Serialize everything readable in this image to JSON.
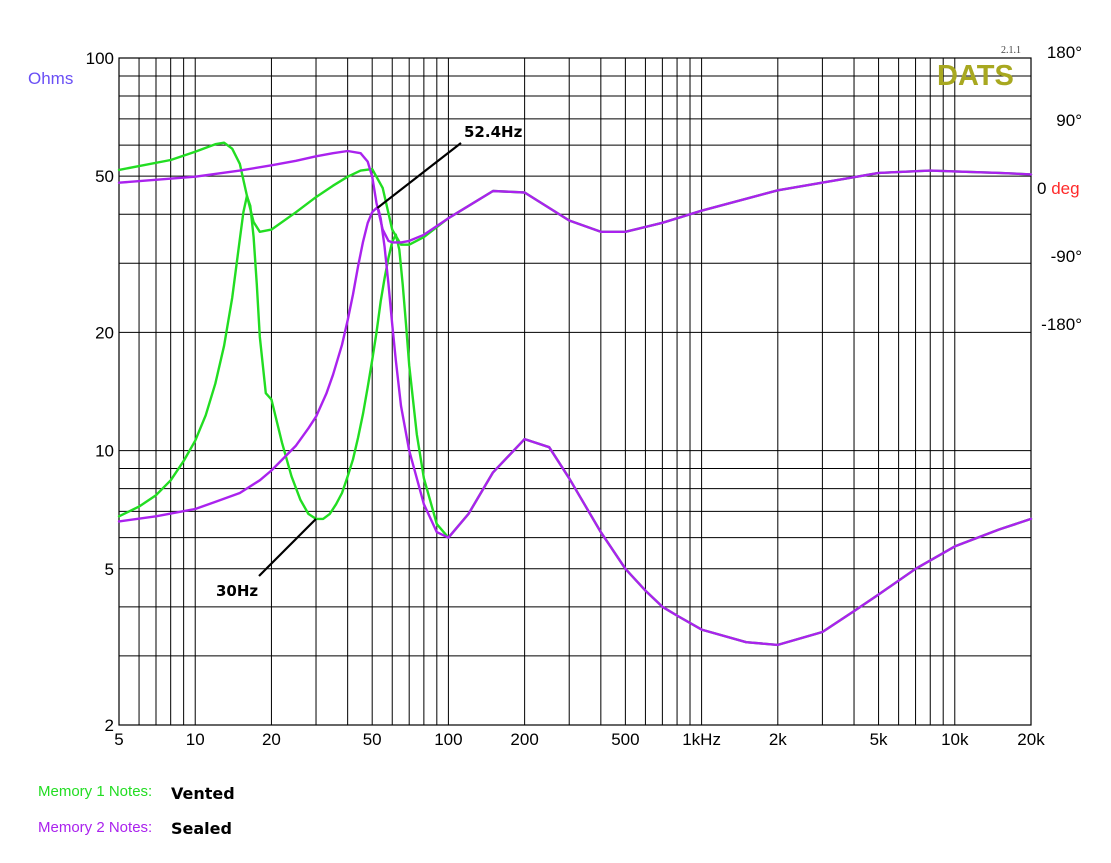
{
  "chart_data": {
    "type": "line",
    "x_scale": "log",
    "y_scale": "log",
    "xlim": [
      5,
      20000
    ],
    "ylim": [
      2,
      100
    ],
    "x_ticks": [
      {
        "value": 5,
        "label": "5"
      },
      {
        "value": 10,
        "label": "10"
      },
      {
        "value": 20,
        "label": "20"
      },
      {
        "value": 50,
        "label": "50"
      },
      {
        "value": 100,
        "label": "100"
      },
      {
        "value": 200,
        "label": "200"
      },
      {
        "value": 500,
        "label": "500"
      },
      {
        "value": 1000,
        "label": "1kHz"
      },
      {
        "value": 2000,
        "label": "2k"
      },
      {
        "value": 5000,
        "label": "5k"
      },
      {
        "value": 10000,
        "label": "10k"
      },
      {
        "value": 20000,
        "label": "20k"
      }
    ],
    "y_ticks": [
      {
        "value": 100,
        "label": "100"
      },
      {
        "value": 50,
        "label": "50"
      },
      {
        "value": 20,
        "label": "20"
      },
      {
        "value": 10,
        "label": "10"
      },
      {
        "value": 5,
        "label": "5"
      },
      {
        "value": 2,
        "label": "2"
      }
    ],
    "ylabel": "Ohms",
    "phase_axis": {
      "ylim": [
        -180,
        180
      ],
      "ticks": [
        {
          "value": 180,
          "label": "180°"
        },
        {
          "value": 90,
          "label": "90°"
        },
        {
          "value": 0,
          "label": "0",
          "unit": "deg"
        },
        {
          "value": -90,
          "label": "-90°"
        },
        {
          "value": -180,
          "label": "-180°"
        }
      ]
    },
    "grid": true,
    "series": [
      {
        "name": "Vented",
        "kind": "impedance",
        "color": "#22dd22",
        "x": [
          5,
          6,
          7,
          8,
          9,
          10,
          11,
          12,
          13,
          14,
          15,
          15.5,
          16,
          16.5,
          17,
          17.5,
          18,
          19,
          20,
          22,
          24,
          26,
          28,
          30,
          32,
          34,
          36,
          38,
          40,
          42,
          44,
          46,
          48,
          50,
          52,
          54,
          56,
          58,
          60,
          62,
          64,
          66,
          68,
          70,
          75,
          80,
          90,
          100,
          120,
          150,
          200,
          250,
          300,
          400,
          500,
          600,
          700,
          800,
          1000,
          1500,
          2000,
          3000,
          4000,
          5000,
          7000,
          10000,
          15000,
          20000
        ],
        "y": [
          6.8,
          7.2,
          7.7,
          8.4,
          9.4,
          10.6,
          12.3,
          14.8,
          18.5,
          24.5,
          34.5,
          40.5,
          44.5,
          42,
          35,
          26.5,
          19.5,
          14,
          13.5,
          10.5,
          8.6,
          7.5,
          6.9,
          6.7,
          6.7,
          6.9,
          7.3,
          7.8,
          8.6,
          9.5,
          10.8,
          12.4,
          14.5,
          17,
          20,
          24,
          27.5,
          31,
          34,
          35.5,
          32.5,
          26.5,
          21,
          16.5,
          11,
          8.5,
          6.5,
          6.0,
          6.9,
          8.8,
          10.7,
          10.2,
          8.5,
          6.2,
          5.0,
          4.4,
          4.0,
          3.8,
          3.5,
          3.25,
          3.2,
          3.45,
          3.9,
          4.3,
          5.0,
          5.7,
          6.3,
          6.7
        ]
      },
      {
        "name": "Sealed",
        "kind": "impedance",
        "color": "#aa22ee",
        "x": [
          5,
          7,
          10,
          12,
          15,
          18,
          20,
          25,
          28,
          30,
          33,
          35,
          38,
          40,
          42,
          44,
          46,
          48,
          50,
          52,
          53,
          54,
          56,
          58,
          60,
          62,
          65,
          70,
          80,
          90,
          100,
          120,
          150,
          200,
          250,
          300,
          400,
          500,
          600,
          700,
          800,
          1000,
          1500,
          2000,
          3000,
          4000,
          5000,
          7000,
          10000,
          15000,
          20000
        ],
        "y": [
          6.6,
          6.8,
          7.1,
          7.4,
          7.8,
          8.4,
          8.9,
          10.3,
          11.4,
          12.2,
          14,
          15.6,
          18.6,
          21.5,
          25,
          29.5,
          34,
          38,
          40.5,
          41.5,
          41,
          39,
          33,
          26.5,
          21,
          17,
          13,
          10,
          7.3,
          6.2,
          6.0,
          6.9,
          8.8,
          10.7,
          10.2,
          8.5,
          6.2,
          5.0,
          4.4,
          4.0,
          3.8,
          3.5,
          3.25,
          3.2,
          3.45,
          3.9,
          4.3,
          5.0,
          5.7,
          6.3,
          6.7
        ]
      },
      {
        "name": "Vented",
        "kind": "phase",
        "color": "#22dd22",
        "x": [
          5,
          8,
          10,
          12,
          13,
          14,
          15,
          16,
          17,
          18,
          20,
          25,
          30,
          35,
          40,
          45,
          50,
          55,
          60,
          65,
          70,
          80,
          100,
          150,
          200,
          300,
          400,
          500,
          700,
          1000,
          2000,
          5000,
          8000,
          10000,
          15000,
          20000
        ],
        "y": [
          24,
          37,
          48,
          58,
          60,
          52,
          32,
          -10,
          -45,
          -58,
          -55,
          -32,
          -12,
          3,
          15,
          23,
          25,
          0,
          -55,
          -75,
          -75,
          -65,
          -40,
          -4,
          -6,
          -43,
          -58,
          -58,
          -46,
          -30,
          -3,
          20,
          23,
          22,
          20,
          18
        ]
      },
      {
        "name": "Sealed",
        "kind": "phase",
        "color": "#aa22ee",
        "x": [
          5,
          10,
          15,
          20,
          25,
          30,
          35,
          40,
          45,
          48,
          50,
          52,
          55,
          58,
          60,
          65,
          70,
          80,
          100,
          150,
          200,
          300,
          400,
          500,
          700,
          1000,
          2000,
          5000,
          8000,
          10000,
          15000,
          20000
        ],
        "y": [
          7,
          15,
          23,
          30,
          36,
          42,
          46,
          49,
          46,
          35,
          15,
          -20,
          -55,
          -70,
          -72,
          -72,
          -70,
          -62,
          -40,
          -4,
          -6,
          -43,
          -58,
          -58,
          -46,
          -30,
          -3,
          20,
          23,
          22,
          20,
          18
        ]
      }
    ],
    "annotations": [
      {
        "label": "52.4Hz",
        "x": 52.4,
        "y": 41.5
      },
      {
        "label": "30Hz",
        "x": 30,
        "y": 6.7
      }
    ],
    "colors": {
      "ohms_label": "#6a4ff5",
      "deg_label": "#ff2a2a",
      "vented": "#22dd22",
      "sealed": "#aa22ee",
      "logo": "#a8a820",
      "grid": "#000000"
    }
  },
  "branding": {
    "logo": "DATS",
    "version": "2.1.1"
  },
  "notes": [
    {
      "label": "Memory 1 Notes:",
      "value": "Vented",
      "color": "#22dd22"
    },
    {
      "label": "Memory 2 Notes:",
      "value": "Sealed",
      "color": "#aa22ee"
    }
  ]
}
